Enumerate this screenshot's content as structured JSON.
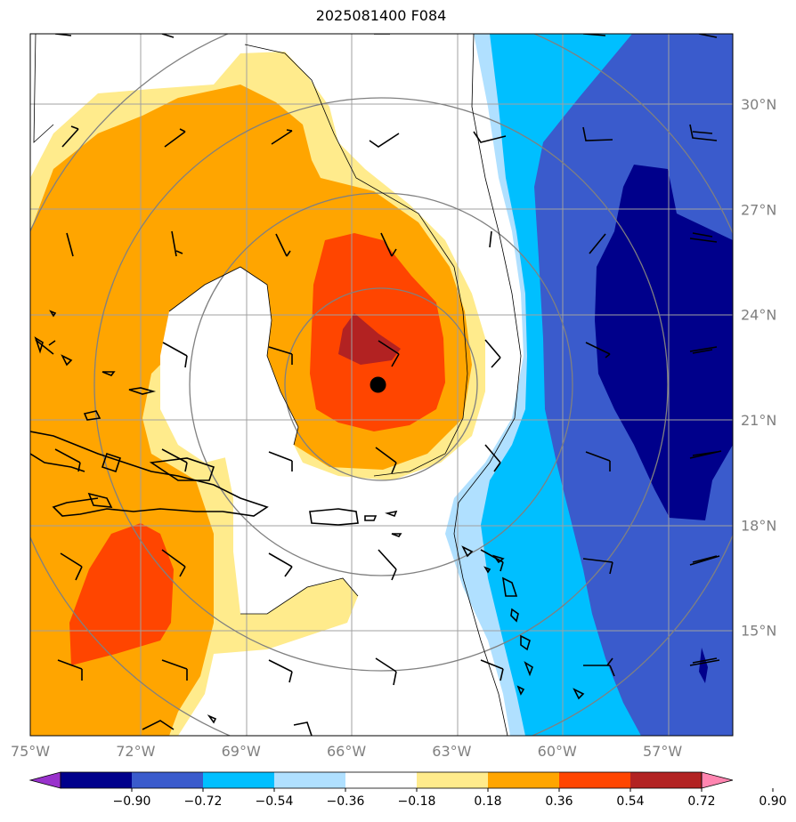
{
  "title": "2025081400 F084",
  "map": {
    "projection": "plate-carree",
    "lon_range": [
      -75,
      -55
    ],
    "lat_range": [
      12,
      32
    ],
    "lon_ticks": [
      {
        "value": -75,
        "label": "75°W"
      },
      {
        "value": -72,
        "label": "72°W"
      },
      {
        "value": -69,
        "label": "69°W"
      },
      {
        "value": -66,
        "label": "66°W"
      },
      {
        "value": -63,
        "label": "63°W"
      },
      {
        "value": -60,
        "label": "60°W"
      },
      {
        "value": -57,
        "label": "57°W"
      }
    ],
    "lat_ticks": [
      {
        "value": 30,
        "label": "30°N"
      },
      {
        "value": 27,
        "label": "27°N"
      },
      {
        "value": 24,
        "label": "24°N"
      },
      {
        "value": 21,
        "label": "21°N"
      },
      {
        "value": 18,
        "label": "18°N"
      },
      {
        "value": 15,
        "label": "15°N"
      }
    ],
    "storm_center": {
      "lon": -65.1,
      "lat": 22.0
    }
  },
  "colorbar": {
    "levels": [
      "−0.90",
      "−0.72",
      "−0.54",
      "−0.36",
      "−0.18",
      "0.18",
      "0.36",
      "0.54",
      "0.72",
      "0.90"
    ],
    "colors": [
      "#9932cc",
      "#00008b",
      "#3a5bcc",
      "#00bfff",
      "#b0e0ff",
      "#ffffff",
      "#ffeb8c",
      "#ffa500",
      "#ff4500",
      "#b22222",
      "#ff85b0"
    ],
    "extend": "both"
  }
}
